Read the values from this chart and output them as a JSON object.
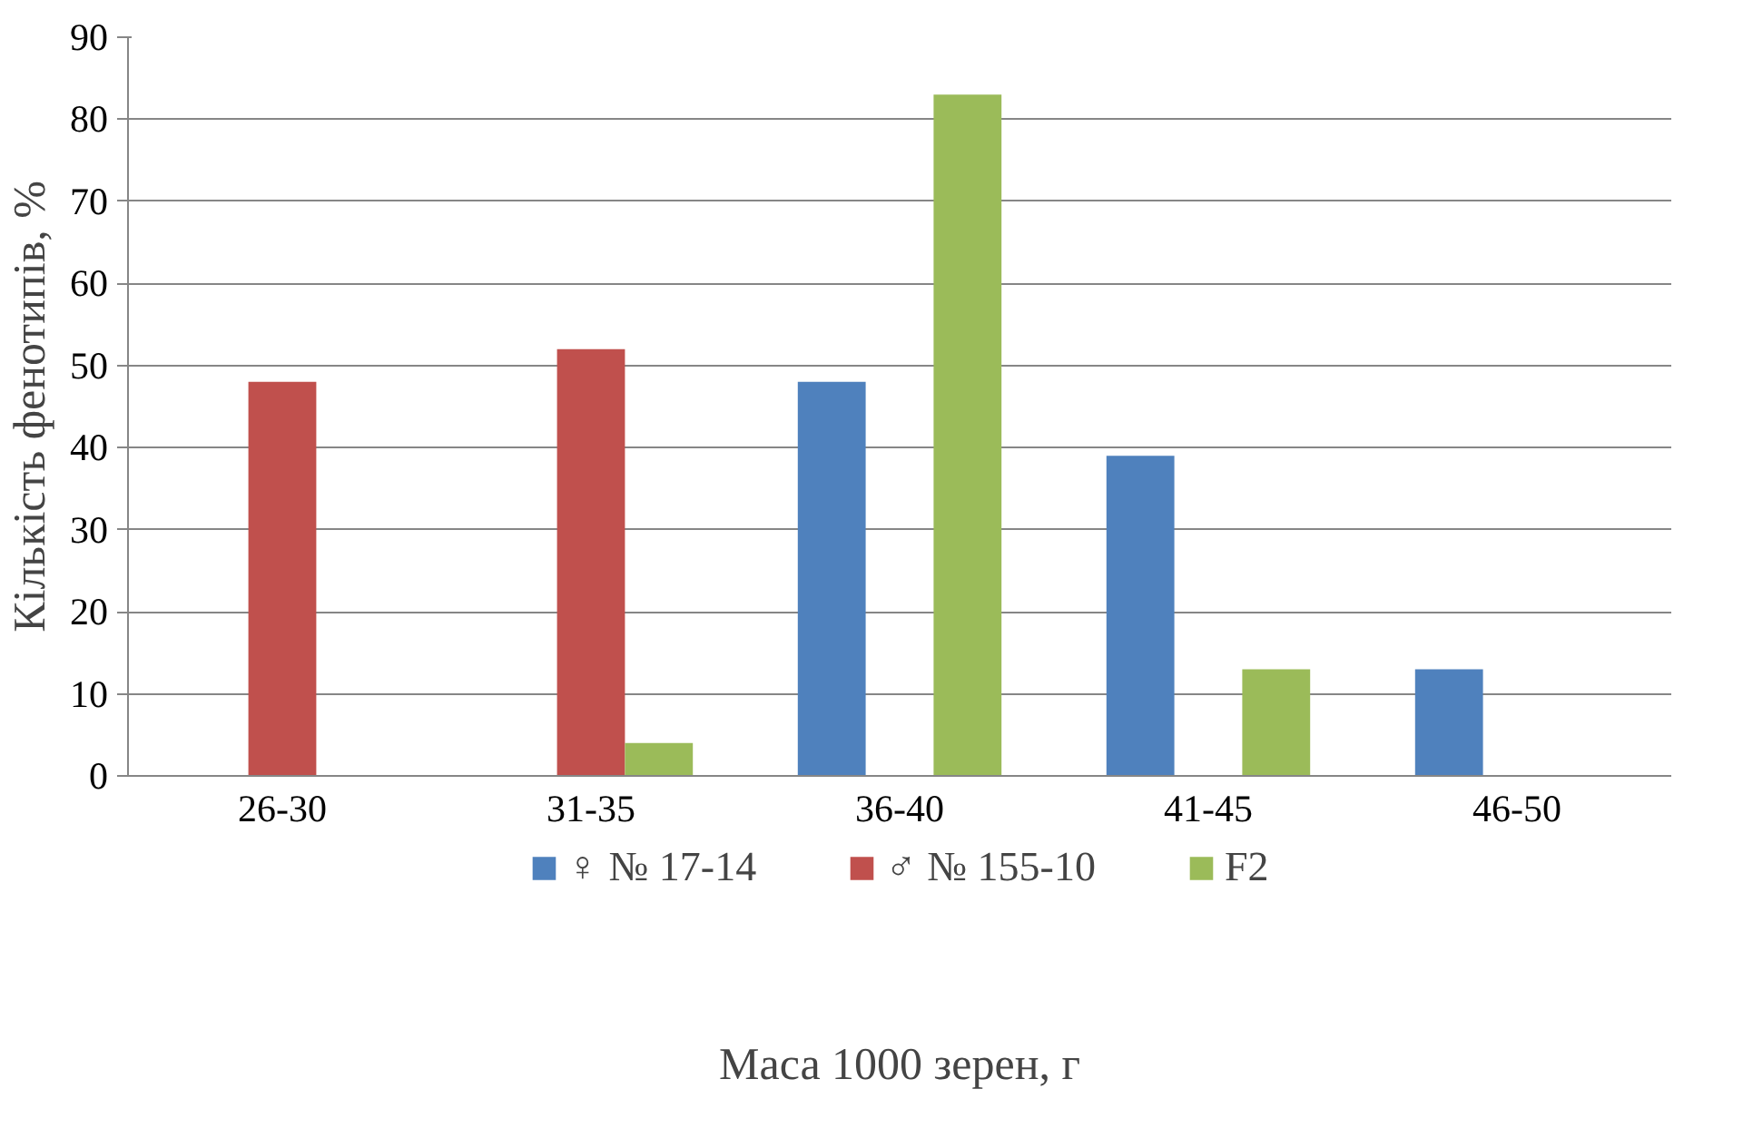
{
  "chart_data": {
    "type": "bar",
    "xlabel": "Маса 1000 зерен, г",
    "ylabel": "Кількість фенотипів, %",
    "categories": [
      "26-30",
      "31-35",
      "36-40",
      "41-45",
      "46-50"
    ],
    "series": [
      {
        "name": "♀ № 17-14",
        "color": "#4f81bd",
        "values": [
          0,
          0,
          48,
          39,
          13
        ]
      },
      {
        "name": "♂ № 155-10",
        "color": "#c0504d",
        "values": [
          48,
          52,
          0,
          0,
          0
        ]
      },
      {
        "name": "F2",
        "color": "#9bbb59",
        "values": [
          0,
          4,
          83,
          13,
          0
        ]
      }
    ],
    "ylim": [
      0,
      90
    ],
    "yticks": [
      0,
      10,
      20,
      30,
      40,
      50,
      60,
      70,
      80,
      90
    ],
    "grid": "y",
    "legend": "bottom"
  }
}
